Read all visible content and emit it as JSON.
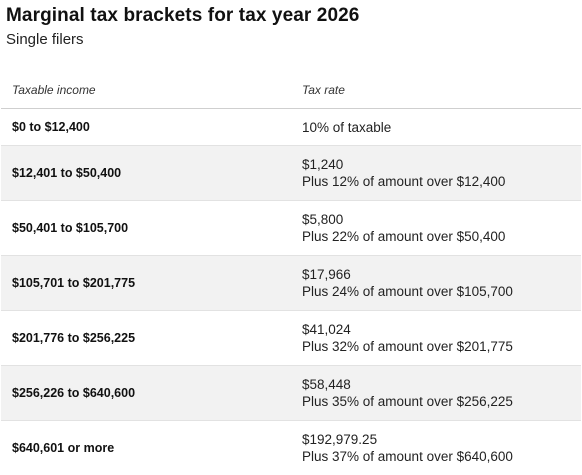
{
  "title": "Marginal tax brackets for tax year 2026",
  "subtitle": "Single filers",
  "table": {
    "headers": {
      "income": "Taxable income",
      "rate": "Tax rate"
    },
    "rows": [
      {
        "income": "$0 to $12,400",
        "rate_line1": "10% of taxable",
        "rate_line2": ""
      },
      {
        "income": "$12,401 to $50,400",
        "rate_line1": "$1,240",
        "rate_line2": "Plus 12% of amount over $12,400"
      },
      {
        "income": "$50,401 to $105,700",
        "rate_line1": "$5,800",
        "rate_line2": "Plus 22% of amount over $50,400"
      },
      {
        "income": "$105,701 to $201,775",
        "rate_line1": "$17,966",
        "rate_line2": "Plus 24% of amount over $105,700"
      },
      {
        "income": "$201,776 to $256,225",
        "rate_line1": "$41,024",
        "rate_line2": "Plus 32% of amount over $201,775"
      },
      {
        "income": "$256,226 to $640,600",
        "rate_line1": "$58,448",
        "rate_line2": "Plus 35% of amount over $256,225"
      },
      {
        "income": "$640,601 or more",
        "rate_line1": "$192,979.25",
        "rate_line2": "Plus 37% of amount over $640,600"
      }
    ]
  }
}
